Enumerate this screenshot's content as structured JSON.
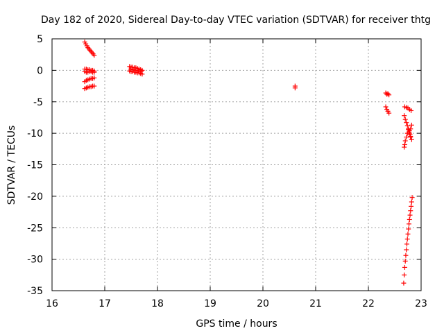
{
  "chart_data": {
    "type": "scatter",
    "title": "Day 182 of 2020, Sidereal Day-to-day VTEC variation (SDTVAR) for receiver thtg",
    "xlabel": "GPS time / hours",
    "ylabel": "SDTVAR / TECUs",
    "xlim": [
      16,
      23
    ],
    "ylim": [
      -35,
      5
    ],
    "xticks": [
      "16",
      "17",
      "18",
      "19",
      "20",
      "21",
      "22",
      "23"
    ],
    "yticks": [
      "5",
      "0",
      "-5",
      "-10",
      "-15",
      "-20",
      "-25",
      "-30",
      "-35"
    ],
    "grid": true,
    "marker": "+",
    "color": "#ff0000",
    "series": [
      {
        "name": "SDTVAR",
        "x": [
          16.62,
          16.64,
          16.66,
          16.68,
          16.7,
          16.72,
          16.74,
          16.76,
          16.78,
          16.8,
          16.62,
          16.65,
          16.68,
          16.71,
          16.74,
          16.77,
          16.8,
          16.62,
          16.65,
          16.68,
          16.71,
          16.74,
          16.77,
          16.8,
          16.62,
          16.65,
          16.68,
          16.71,
          16.74,
          16.77,
          16.8,
          16.62,
          16.65,
          16.68,
          16.71,
          16.74,
          16.77,
          16.8,
          17.47,
          17.5,
          17.53,
          17.56,
          17.59,
          17.62,
          17.65,
          17.68,
          17.71,
          17.47,
          17.5,
          17.53,
          17.56,
          17.59,
          17.62,
          17.65,
          17.68,
          17.71,
          17.49,
          17.54,
          17.59,
          17.64,
          17.69,
          20.61,
          20.61,
          22.33,
          22.35,
          22.37,
          22.39,
          22.33,
          22.35,
          22.37,
          22.39,
          22.69,
          22.72,
          22.75,
          22.78,
          22.81,
          22.68,
          22.7,
          22.72,
          22.74,
          22.76,
          22.78,
          22.8,
          22.82,
          22.78,
          22.8,
          22.77,
          22.79,
          22.8,
          22.82,
          22.68,
          22.69,
          22.7,
          22.72,
          22.74,
          22.76,
          22.67,
          22.68,
          22.69,
          22.7,
          22.71,
          22.72,
          22.73,
          22.74,
          22.75,
          22.76,
          22.77,
          22.78,
          22.79,
          22.8,
          22.81,
          22.82,
          22.83
        ],
        "y": [
          4.5,
          4.2,
          3.9,
          3.6,
          3.4,
          3.2,
          3.0,
          2.8,
          2.6,
          2.4,
          0.2,
          0.2,
          0.1,
          0.1,
          0.0,
          0.0,
          -0.1,
          -1.8,
          -1.6,
          -1.5,
          -1.4,
          -1.3,
          -1.3,
          -1.2,
          -2.9,
          -2.8,
          -2.7,
          -2.6,
          -2.6,
          -2.5,
          -2.5,
          -0.2,
          -0.3,
          -0.3,
          -0.2,
          -0.2,
          -0.3,
          -0.3,
          0.6,
          0.5,
          0.5,
          0.4,
          0.4,
          0.3,
          0.2,
          0.1,
          0.0,
          -0.1,
          -0.2,
          -0.2,
          -0.3,
          -0.3,
          -0.4,
          -0.4,
          -0.5,
          -0.6,
          0.2,
          0.1,
          0.0,
          -0.1,
          -0.2,
          -2.5,
          -2.8,
          -3.6,
          -3.8,
          -3.7,
          -3.9,
          -5.8,
          -6.2,
          -6.5,
          -6.8,
          -5.8,
          -5.9,
          -6.0,
          -6.2,
          -6.4,
          -7.2,
          -7.8,
          -8.3,
          -8.8,
          -9.3,
          -9.6,
          -9.3,
          -8.7,
          -10.0,
          -10.5,
          -9.8,
          -10.2,
          -10.6,
          -11.0,
          -12.2,
          -11.8,
          -11.2,
          -10.6,
          -10.0,
          -9.4,
          -33.8,
          -32.5,
          -31.3,
          -30.3,
          -29.4,
          -28.5,
          -27.6,
          -26.8,
          -26.0,
          -25.2,
          -24.4,
          -23.7,
          -23.0,
          -22.3,
          -21.6,
          -20.9,
          -20.2
        ]
      }
    ]
  }
}
